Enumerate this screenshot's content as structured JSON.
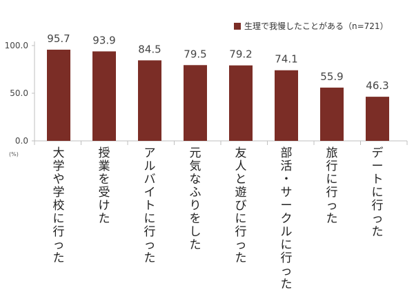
{
  "chart_data": {
    "type": "bar",
    "title": "",
    "xlabel": "",
    "ylabel": "",
    "y_unit_label": "(%)",
    "ylim": [
      0,
      100
    ],
    "y_ticks": [
      "0.0",
      "50.0",
      "100.0"
    ],
    "categories": [
      "大学や学校に行った",
      "授業を受けた",
      "アルバイトに行った",
      "元気なふりをした",
      "友人と遊びに行った",
      "部活・サークルに行った",
      "旅行に行った",
      "デートに行った"
    ],
    "series": [
      {
        "name": "生理で我慢したことがある（n=721）",
        "values": [
          95.7,
          93.9,
          84.5,
          79.5,
          79.2,
          74.1,
          55.9,
          46.3
        ]
      }
    ],
    "value_labels": [
      "95.7",
      "93.9",
      "84.5",
      "79.5",
      "79.2",
      "74.1",
      "55.9",
      "46.3"
    ],
    "legend_position": "top-right",
    "grid": false,
    "colors": {
      "bar": "#7b2d26",
      "axis": "#bfbfbf"
    }
  }
}
